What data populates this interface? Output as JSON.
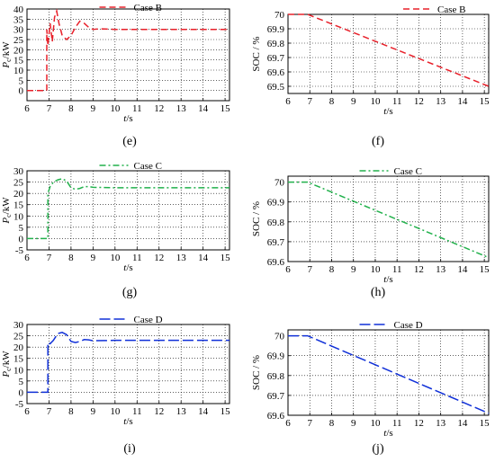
{
  "figure": {
    "captions": [
      "(e)",
      "(f)",
      "(g)",
      "(h)",
      "(i)",
      "(j)"
    ]
  },
  "chart_data": [
    {
      "id": "e",
      "type": "line",
      "legend": "Case B",
      "legend_position": "top-center",
      "color": "#e8202a",
      "dash": "7,4",
      "xlabel_italic": "t",
      "xlabel_unit": "/s",
      "ylabel_main": "P",
      "ylabel_sub": "c",
      "ylabel_unit": "/kW",
      "xlim": [
        6,
        15.2
      ],
      "ylim": [
        -5,
        40
      ],
      "xticks": [
        6,
        7,
        8,
        9,
        10,
        11,
        12,
        13,
        14,
        15
      ],
      "yticks": [
        0,
        5,
        10,
        15,
        20,
        25,
        30,
        35,
        40
      ],
      "ylabels_text": [
        "0",
        "5",
        "10",
        "15",
        "20",
        "25",
        "30",
        "35",
        "40"
      ],
      "grid": true,
      "x": [
        6,
        6.9,
        6.9,
        6.95,
        7.05,
        7.15,
        7.25,
        7.35,
        7.45,
        7.6,
        7.8,
        8.0,
        8.2,
        8.4,
        8.6,
        8.8,
        9.0,
        9.3,
        10,
        11,
        12,
        13,
        14,
        15.2
      ],
      "y": [
        0,
        0,
        30,
        22,
        33,
        24,
        36,
        39,
        33,
        27,
        25,
        27,
        31,
        34,
        33,
        31,
        30,
        30.3,
        30,
        30,
        30,
        30,
        30,
        30
      ]
    },
    {
      "id": "f",
      "type": "line",
      "legend": "Case B",
      "legend_position": "top-right",
      "color": "#e8202a",
      "dash": "7,4",
      "xlabel_italic": "t",
      "xlabel_unit": "/s",
      "ylabel_text": "SOC / %",
      "xlim": [
        6,
        15.2
      ],
      "ylim": [
        69.45,
        70
      ],
      "xticks": [
        6,
        7,
        8,
        9,
        10,
        11,
        12,
        13,
        14,
        15
      ],
      "yticks": [
        69.5,
        69.6,
        69.7,
        69.8,
        69.9,
        70
      ],
      "ylabels_text": [
        "69.5",
        "69.6",
        "69.7",
        "69.8",
        "69.9",
        "70"
      ],
      "grid": true,
      "x": [
        6,
        6.9,
        15.2
      ],
      "y": [
        70,
        70,
        69.5
      ]
    },
    {
      "id": "g",
      "type": "line",
      "legend": "Case C",
      "legend_position": "top-center",
      "color": "#22b14c",
      "dash": "7,3,2,3",
      "xlabel_italic": "t",
      "xlabel_unit": "/s",
      "ylabel_main": "P",
      "ylabel_sub": "c",
      "ylabel_unit": "/kW",
      "xlim": [
        6,
        15.2
      ],
      "ylim": [
        -5,
        30
      ],
      "xticks": [
        6,
        7,
        8,
        9,
        10,
        11,
        12,
        13,
        14,
        15
      ],
      "yticks": [
        -5,
        0,
        5,
        10,
        15,
        20,
        25,
        30
      ],
      "ylabels_text": [
        "-5",
        "0",
        "5",
        "10",
        "15",
        "20",
        "25",
        "30"
      ],
      "grid": true,
      "x": [
        6,
        6.95,
        6.95,
        7.05,
        7.2,
        7.4,
        7.6,
        7.8,
        8.0,
        8.2,
        8.4,
        8.6,
        8.8,
        9.0,
        9.5,
        10,
        11,
        12,
        13,
        14,
        15.2
      ],
      "y": [
        0,
        0,
        20,
        23,
        25,
        26,
        26.5,
        25.5,
        22.5,
        21.8,
        22.2,
        23,
        23,
        22.7,
        22.6,
        22.5,
        22.5,
        22.5,
        22.5,
        22.5,
        22.5
      ]
    },
    {
      "id": "h",
      "type": "line",
      "legend": "Case C",
      "legend_position": "top-center",
      "color": "#22b14c",
      "dash": "7,3,2,3",
      "xlabel_italic": "t",
      "xlabel_unit": "/s",
      "ylabel_text": "SOC / %",
      "xlim": [
        6,
        15.2
      ],
      "ylim": [
        69.6,
        70.03
      ],
      "xticks": [
        6,
        7,
        8,
        9,
        10,
        11,
        12,
        13,
        14,
        15
      ],
      "yticks": [
        69.6,
        69.7,
        69.8,
        69.9,
        70
      ],
      "ylabels_text": [
        "69.6",
        "69.7",
        "69.8",
        "69.9",
        "70"
      ],
      "grid": true,
      "x": [
        6,
        6.9,
        15.2
      ],
      "y": [
        70,
        70,
        69.62
      ]
    },
    {
      "id": "i",
      "type": "line",
      "legend": "Case D",
      "legend_position": "top-center",
      "color": "#1030d8",
      "dash": "12,4",
      "xlabel_italic": "t",
      "xlabel_unit": "/s",
      "ylabel_main": "P",
      "ylabel_sub": "c",
      "ylabel_unit": "/kW",
      "xlim": [
        6,
        15.2
      ],
      "ylim": [
        -5,
        30
      ],
      "xticks": [
        6,
        7,
        8,
        9,
        10,
        11,
        12,
        13,
        14,
        15
      ],
      "yticks": [
        -5,
        0,
        5,
        10,
        15,
        20,
        25,
        30
      ],
      "ylabels_text": [
        "-5",
        "0",
        "5",
        "10",
        "15",
        "20",
        "25",
        "30"
      ],
      "grid": true,
      "x": [
        6,
        6.95,
        6.95,
        7.05,
        7.2,
        7.4,
        7.6,
        7.8,
        8.0,
        8.2,
        8.4,
        8.6,
        8.8,
        9.0,
        9.5,
        10,
        11,
        12,
        13,
        14,
        15.2
      ],
      "y": [
        0,
        0,
        22,
        21.5,
        23,
        26,
        26.5,
        25.5,
        22.5,
        22,
        22.5,
        23.3,
        23.2,
        22.8,
        22.9,
        23,
        23,
        23,
        23,
        23,
        23
      ]
    },
    {
      "id": "j",
      "type": "line",
      "legend": "Case D",
      "legend_position": "top-center",
      "color": "#1030d8",
      "dash": "12,4",
      "xlabel_italic": "t",
      "xlabel_unit": "/s",
      "ylabel_text": "SOC / %",
      "xlim": [
        6,
        15.2
      ],
      "ylim": [
        69.6,
        70.03
      ],
      "xticks": [
        6,
        7,
        8,
        9,
        10,
        11,
        12,
        13,
        14,
        15
      ],
      "yticks": [
        69.6,
        69.7,
        69.8,
        69.9,
        70
      ],
      "ylabels_text": [
        "69.6",
        "69.7",
        "69.8",
        "69.9",
        "70"
      ],
      "grid": true,
      "x": [
        6,
        6.9,
        15.2
      ],
      "y": [
        70,
        70,
        69.61
      ]
    }
  ]
}
